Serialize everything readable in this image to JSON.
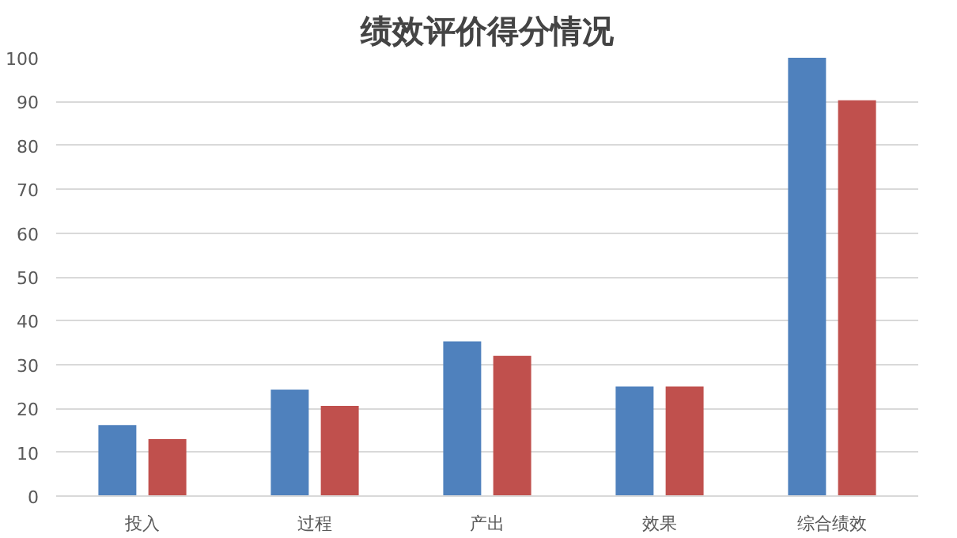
{
  "chart_data": {
    "type": "bar",
    "title": "绩效评价得分情况",
    "categories": [
      "投入",
      "过程",
      "产出",
      "效果",
      "综合绩效"
    ],
    "series": [
      {
        "color": "#4f81bd",
        "values": [
          16.2,
          24.3,
          35.3,
          25,
          100
        ]
      },
      {
        "color": "#c0504d",
        "values": [
          13,
          20.6,
          32,
          25,
          90.3
        ]
      }
    ],
    "ylim": [
      0,
      100
    ],
    "yticks": [
      0,
      10,
      20,
      30,
      40,
      50,
      60,
      70,
      80,
      90,
      100
    ],
    "grid": "y"
  }
}
